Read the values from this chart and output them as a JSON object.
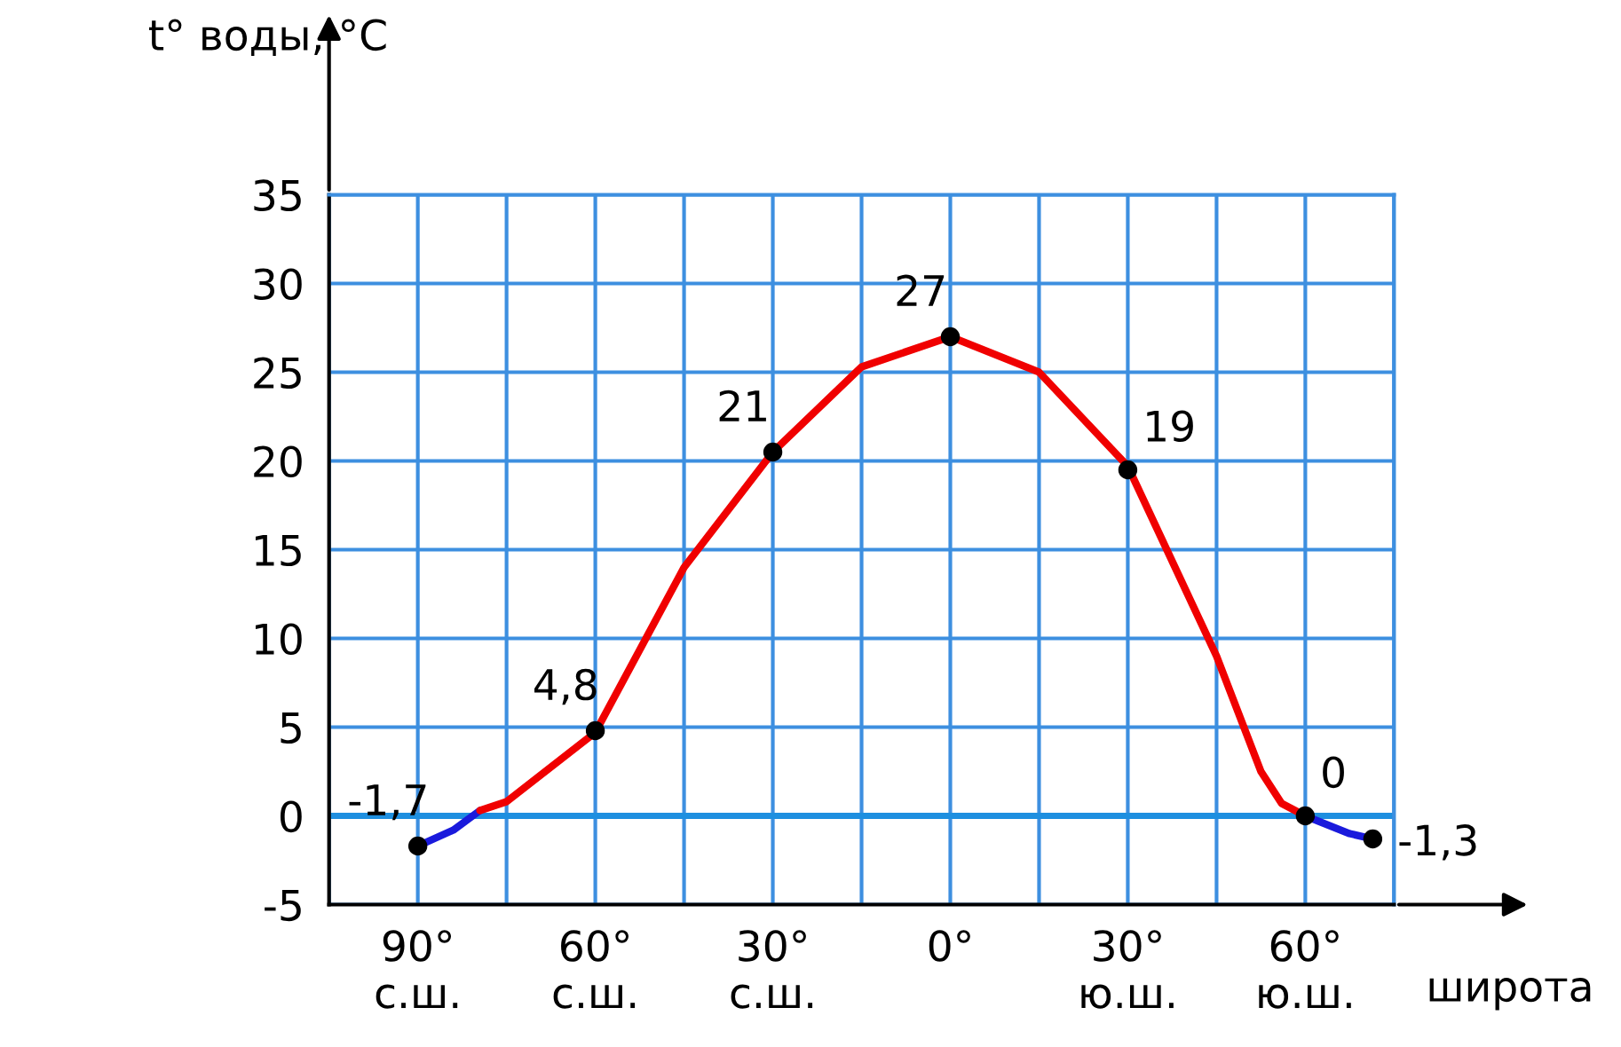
{
  "chart_data": {
    "type": "line",
    "ylabel": "t° воды, °C",
    "xlabel": "широта",
    "xlim": [
      -105,
      75
    ],
    "xticks": [
      {
        "value": -105,
        "label": null
      },
      {
        "value": -90,
        "label": "90°\nс.ш."
      },
      {
        "value": -75,
        "label": null
      },
      {
        "value": -60,
        "label": "60°\nс.ш."
      },
      {
        "value": -45,
        "label": null
      },
      {
        "value": -30,
        "label": "30°\nс.ш."
      },
      {
        "value": -15,
        "label": null
      },
      {
        "value": 0,
        "label": "0°"
      },
      {
        "value": 15,
        "label": null
      },
      {
        "value": 30,
        "label": "30°\nю.ш."
      },
      {
        "value": 45,
        "label": null
      },
      {
        "value": 60,
        "label": "60°\nю.ш."
      },
      {
        "value": 75,
        "label": null
      }
    ],
    "ylim": [
      -5,
      35
    ],
    "yticks": [
      {
        "value": -5,
        "label": "-5"
      },
      0,
      5,
      10,
      15,
      20,
      25,
      30,
      35
    ],
    "grid": true,
    "ref_lines": [
      {
        "axis": "y",
        "value": 0,
        "color": "#1e8fe0"
      }
    ],
    "series": [
      {
        "type": "line",
        "color": "#1a1adc",
        "x": [
          -90,
          -84,
          -79.5,
          0,
          60,
          67.5,
          71.4
        ],
        "values": [
          -1.7,
          -0.8,
          0.3,
          null,
          0,
          -1,
          -1.3
        ],
        "marker": "none"
      },
      {
        "type": "line",
        "color": "#f00000",
        "x": [
          -79.5,
          -75,
          -60,
          -45,
          -30,
          -15,
          0,
          15,
          30,
          45,
          52.5,
          56,
          60
        ],
        "values": [
          0.3,
          0.8,
          4.7,
          14,
          20.5,
          25.3,
          27,
          25,
          19.7,
          9,
          2.5,
          0.7,
          0
        ],
        "marker": "none"
      },
      {
        "type": "scatter",
        "color": "#000000",
        "x": [
          -90,
          -60,
          -30,
          0,
          30,
          60,
          71.4
        ],
        "values": [
          -1.7,
          4.8,
          20.5,
          27,
          19.5,
          0,
          -1.3
        ],
        "marker": "circle",
        "value_labels": [
          "-1,7",
          "4,8",
          "21",
          "27",
          "19",
          "0",
          "-1,3"
        ]
      }
    ]
  }
}
